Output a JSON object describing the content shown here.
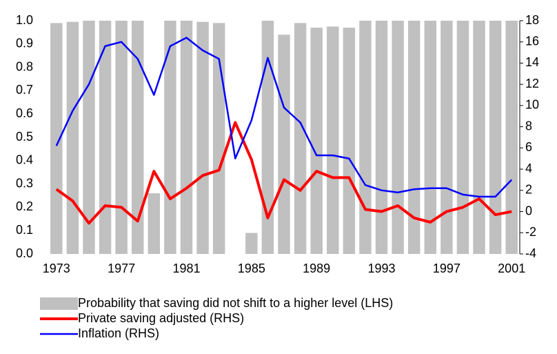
{
  "chart_data": {
    "type": "bar-line",
    "x": [
      1973,
      1974,
      1975,
      1976,
      1977,
      1978,
      1979,
      1980,
      1981,
      1982,
      1983,
      1984,
      1985,
      1986,
      1987,
      1988,
      1989,
      1990,
      1991,
      1992,
      1993,
      1994,
      1995,
      1996,
      1997,
      1998,
      1999,
      2000,
      2001
    ],
    "xlim": [
      1972.5,
      2001.5
    ],
    "xticks": [
      1973,
      1977,
      1981,
      1985,
      1989,
      1993,
      1997,
      2001
    ],
    "ylim": [
      0,
      1
    ],
    "yticks": [
      {
        "value": 0,
        "label": "0.0"
      },
      0.1,
      0.2,
      0.3,
      0.4,
      0.5,
      0.6,
      0.7,
      0.8,
      0.9,
      {
        "value": 1,
        "label": "1.0"
      }
    ],
    "y2lim": [
      -4,
      18
    ],
    "y2ticks": [
      -4,
      -2,
      0,
      2,
      4,
      6,
      8,
      10,
      12,
      14,
      16,
      18
    ],
    "series": [
      {
        "name": "Probability that saving did not shift to a higher level (LHS)",
        "type": "bar",
        "color": "#c0c0c0",
        "values": [
          0.99,
          0.995,
          1.0,
          1.0,
          1.0,
          1.0,
          0.26,
          1.0,
          1.0,
          0.995,
          0.99,
          0,
          0.09,
          1.0,
          0.94,
          0.99,
          0.97,
          0.975,
          0.97,
          1.0,
          1.0,
          1.0,
          1.0,
          1.0,
          1.0,
          1.0,
          1.0,
          1.0,
          1.0
        ]
      },
      {
        "name": "Private saving adjusted (RHS)",
        "type": "line",
        "axis": "y2",
        "color": "#ff0000",
        "values": [
          2.1,
          1.0,
          -1.1,
          0.55,
          0.4,
          -0.9,
          3.8,
          1.2,
          2.2,
          3.4,
          3.9,
          8.4,
          4.9,
          -0.6,
          3.0,
          2.0,
          3.8,
          3.2,
          3.2,
          0.2,
          0.0,
          0.55,
          -0.6,
          -1.0,
          0.0,
          0.4,
          1.2,
          -0.3,
          0.0
        ]
      },
      {
        "name": "Inflation (RHS)",
        "type": "line",
        "axis": "y2",
        "color": "#0000ff",
        "values": [
          6.2,
          9.5,
          12,
          15.6,
          16,
          14.4,
          11,
          15.6,
          16.4,
          15.2,
          14.4,
          5,
          8.6,
          14.5,
          9.8,
          8.4,
          5.3,
          5.3,
          5,
          2.5,
          2,
          1.8,
          2.1,
          2.2,
          2.2,
          1.6,
          1.4,
          1.4,
          3
        ]
      }
    ]
  }
}
